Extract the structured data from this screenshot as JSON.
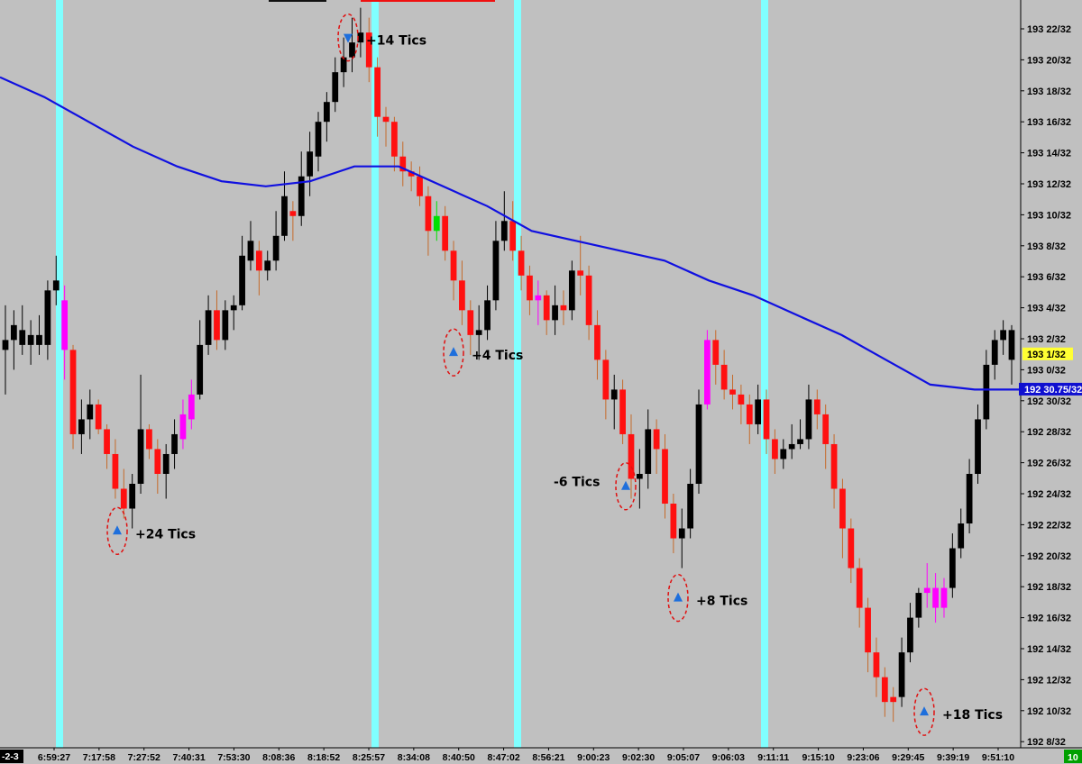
{
  "chart_data": {
    "type": "candlestick",
    "price_axis_labels": [
      "193 22/32",
      "193 20/32",
      "193 18/32",
      "193 16/32",
      "193 14/32",
      "193 12/32",
      "193 10/32",
      "193 8/32",
      "193 6/32",
      "193 4/32",
      "193 2/32",
      "193 0/32",
      "192 30/32",
      "192 28/32",
      "192 26/32",
      "192 24/32",
      "192 22/32",
      "192 20/32",
      "192 18/32",
      "192 16/32",
      "192 14/32",
      "192 12/32",
      "192 10/32",
      "192 8/32"
    ],
    "price_axis_values": [
      193.6875,
      193.625,
      193.5625,
      193.5,
      193.4375,
      193.375,
      193.3125,
      193.25,
      193.1875,
      193.125,
      193.0625,
      193.0,
      192.9375,
      192.875,
      192.8125,
      192.75,
      192.6875,
      192.625,
      192.5625,
      192.5,
      192.4375,
      192.375,
      192.3125,
      192.25
    ],
    "ylim": [
      192.2348,
      193.7391
    ],
    "last_price_label": "193 1/32",
    "moving_average_label": "192 30.75/32",
    "moving_average_value": 192.9609,
    "time_axis_labels": [
      "6:59:27",
      "7:17:58",
      "7:27:52",
      "7:40:31",
      "7:53:30",
      "8:08:36",
      "8:18:52",
      "8:25:57",
      "8:34:08",
      "8:40:50",
      "8:47:02",
      "8:56:21",
      "9:00:23",
      "9:02:30",
      "9:05:07",
      "9:06:03",
      "9:11:11",
      "9:15:10",
      "9:23:06",
      "9:29:45",
      "9:39:19",
      "9:51:10"
    ],
    "time_axis_left_fragment": "-2-3",
    "time_axis_right_fragment": "10",
    "volume_bar_count": 120,
    "candles": [
      [
        193.04,
        193.13,
        192.95,
        193.06,
        "black"
      ],
      [
        193.06,
        193.12,
        193.0,
        193.09,
        "black"
      ],
      [
        193.08,
        193.13,
        193.03,
        193.05,
        "black"
      ],
      [
        193.05,
        193.1,
        193.01,
        193.07,
        "black"
      ],
      [
        193.07,
        193.11,
        193.03,
        193.05,
        "black"
      ],
      [
        193.05,
        193.18,
        193.02,
        193.16,
        "black"
      ],
      [
        193.16,
        193.23,
        193.13,
        193.18,
        "black"
      ],
      [
        193.14,
        193.17,
        192.98,
        193.04,
        "magenta"
      ],
      [
        193.04,
        193.05,
        192.84,
        192.87,
        "red"
      ],
      [
        192.87,
        192.94,
        192.83,
        192.9,
        "black"
      ],
      [
        192.9,
        192.96,
        192.86,
        192.93,
        "black"
      ],
      [
        192.93,
        192.94,
        192.87,
        192.88,
        "red"
      ],
      [
        192.88,
        192.89,
        192.8,
        192.83,
        "red"
      ],
      [
        192.83,
        192.86,
        192.74,
        192.76,
        "red"
      ],
      [
        192.76,
        192.8,
        192.7,
        192.72,
        "red"
      ],
      [
        192.72,
        192.79,
        192.68,
        192.77,
        "black"
      ],
      [
        192.77,
        192.99,
        192.75,
        192.88,
        "black"
      ],
      [
        192.88,
        192.89,
        192.82,
        192.84,
        "red"
      ],
      [
        192.84,
        192.86,
        192.75,
        192.79,
        "red"
      ],
      [
        192.79,
        192.85,
        192.74,
        192.83,
        "black"
      ],
      [
        192.83,
        192.9,
        192.8,
        192.87,
        "black"
      ],
      [
        192.86,
        192.94,
        192.84,
        192.91,
        "magenta"
      ],
      [
        192.9,
        192.98,
        192.88,
        192.95,
        "magenta"
      ],
      [
        192.95,
        193.1,
        192.94,
        193.05,
        "black"
      ],
      [
        193.05,
        193.15,
        193.03,
        193.12,
        "black"
      ],
      [
        193.12,
        193.16,
        193.04,
        193.06,
        "red"
      ],
      [
        193.06,
        193.14,
        193.04,
        193.12,
        "black"
      ],
      [
        193.12,
        193.15,
        193.08,
        193.13,
        "black"
      ],
      [
        193.13,
        193.27,
        193.12,
        193.23,
        "black"
      ],
      [
        193.22,
        193.3,
        193.2,
        193.26,
        "black"
      ],
      [
        193.24,
        193.26,
        193.15,
        193.2,
        "red"
      ],
      [
        193.2,
        193.24,
        193.18,
        193.22,
        "black"
      ],
      [
        193.22,
        193.32,
        193.2,
        193.27,
        "black"
      ],
      [
        193.27,
        193.4,
        193.26,
        193.35,
        "black"
      ],
      [
        193.32,
        193.34,
        193.26,
        193.31,
        "red"
      ],
      [
        193.31,
        193.44,
        193.29,
        193.39,
        "black"
      ],
      [
        193.39,
        193.48,
        193.35,
        193.44,
        "black"
      ],
      [
        193.43,
        193.52,
        193.4,
        193.5,
        "black"
      ],
      [
        193.5,
        193.56,
        193.46,
        193.54,
        "black"
      ],
      [
        193.54,
        193.63,
        193.52,
        193.6,
        "black"
      ],
      [
        193.6,
        193.67,
        193.57,
        193.63,
        "black"
      ],
      [
        193.63,
        193.71,
        193.6,
        193.66,
        "black"
      ],
      [
        193.66,
        193.73,
        193.63,
        193.68,
        "black"
      ],
      [
        193.68,
        193.71,
        193.58,
        193.61,
        "red"
      ],
      [
        193.61,
        193.63,
        193.47,
        193.51,
        "red"
      ],
      [
        193.51,
        193.53,
        193.45,
        193.5,
        "red"
      ],
      [
        193.5,
        193.51,
        193.4,
        193.43,
        "red"
      ],
      [
        193.43,
        193.46,
        193.37,
        193.4,
        "red"
      ],
      [
        193.4,
        193.42,
        193.36,
        193.39,
        "red"
      ],
      [
        193.39,
        193.41,
        193.33,
        193.35,
        "red"
      ],
      [
        193.35,
        193.37,
        193.23,
        193.28,
        "red"
      ],
      [
        193.28,
        193.34,
        193.26,
        193.31,
        "green"
      ],
      [
        193.31,
        193.33,
        193.22,
        193.24,
        "red"
      ],
      [
        193.24,
        193.26,
        193.14,
        193.18,
        "red"
      ],
      [
        193.18,
        193.22,
        193.09,
        193.12,
        "red"
      ],
      [
        193.12,
        193.14,
        193.03,
        193.07,
        "red"
      ],
      [
        193.07,
        193.13,
        193.02,
        193.08,
        "black"
      ],
      [
        193.08,
        193.17,
        193.06,
        193.14,
        "black"
      ],
      [
        193.14,
        193.3,
        193.12,
        193.26,
        "black"
      ],
      [
        193.26,
        193.36,
        193.24,
        193.3,
        "black"
      ],
      [
        193.3,
        193.34,
        193.22,
        193.24,
        "red"
      ],
      [
        193.24,
        193.27,
        193.16,
        193.19,
        "red"
      ],
      [
        193.19,
        193.21,
        193.11,
        193.14,
        "red"
      ],
      [
        193.14,
        193.18,
        193.09,
        193.15,
        "magenta"
      ],
      [
        193.15,
        193.16,
        193.07,
        193.1,
        "red"
      ],
      [
        193.1,
        193.17,
        193.07,
        193.13,
        "black"
      ],
      [
        193.13,
        193.16,
        193.09,
        193.12,
        "red"
      ],
      [
        193.12,
        193.22,
        193.1,
        193.2,
        "black"
      ],
      [
        193.2,
        193.27,
        193.15,
        193.19,
        "red"
      ],
      [
        193.19,
        193.21,
        193.06,
        193.09,
        "red"
      ],
      [
        193.09,
        193.12,
        192.98,
        193.02,
        "red"
      ],
      [
        193.02,
        193.04,
        192.9,
        192.94,
        "red"
      ],
      [
        192.94,
        192.99,
        192.88,
        192.96,
        "black"
      ],
      [
        192.96,
        192.98,
        192.85,
        192.87,
        "red"
      ],
      [
        192.87,
        192.91,
        192.74,
        192.78,
        "red"
      ],
      [
        192.78,
        192.84,
        192.72,
        192.79,
        "black"
      ],
      [
        192.79,
        192.92,
        192.76,
        192.88,
        "black"
      ],
      [
        192.88,
        192.9,
        192.79,
        192.84,
        "red"
      ],
      [
        192.84,
        192.87,
        192.7,
        192.73,
        "red"
      ],
      [
        192.73,
        192.75,
        192.63,
        192.66,
        "red"
      ],
      [
        192.66,
        192.72,
        192.6,
        192.68,
        "black"
      ],
      [
        192.68,
        192.8,
        192.66,
        192.77,
        "black"
      ],
      [
        192.77,
        192.96,
        192.75,
        192.93,
        "black"
      ],
      [
        192.93,
        193.08,
        192.92,
        193.06,
        "magenta"
      ],
      [
        193.06,
        193.08,
        192.97,
        193.01,
        "red"
      ],
      [
        193.01,
        193.04,
        192.94,
        192.96,
        "red"
      ],
      [
        192.96,
        192.99,
        192.92,
        192.95,
        "red"
      ],
      [
        192.95,
        192.97,
        192.89,
        192.93,
        "red"
      ],
      [
        192.93,
        192.95,
        192.85,
        192.89,
        "red"
      ],
      [
        192.89,
        192.97,
        192.87,
        192.94,
        "black"
      ],
      [
        192.94,
        192.96,
        192.83,
        192.86,
        "red"
      ],
      [
        192.86,
        192.88,
        192.79,
        192.82,
        "red"
      ],
      [
        192.82,
        192.86,
        192.8,
        192.84,
        "black"
      ],
      [
        192.84,
        192.89,
        192.82,
        192.85,
        "black"
      ],
      [
        192.85,
        192.9,
        192.84,
        192.86,
        "black"
      ],
      [
        192.86,
        192.97,
        192.84,
        192.94,
        "black"
      ],
      [
        192.94,
        192.96,
        192.88,
        192.91,
        "red"
      ],
      [
        192.91,
        192.93,
        192.8,
        192.85,
        "red"
      ],
      [
        192.85,
        192.87,
        192.72,
        192.76,
        "red"
      ],
      [
        192.76,
        192.78,
        192.62,
        192.68,
        "red"
      ],
      [
        192.68,
        192.7,
        192.57,
        192.6,
        "red"
      ],
      [
        192.6,
        192.62,
        192.48,
        192.52,
        "red"
      ],
      [
        192.52,
        192.54,
        192.39,
        192.43,
        "red"
      ],
      [
        192.43,
        192.46,
        192.34,
        192.38,
        "red"
      ],
      [
        192.38,
        192.4,
        192.3,
        192.33,
        "red"
      ],
      [
        192.33,
        192.36,
        192.29,
        192.34,
        "red"
      ],
      [
        192.34,
        192.46,
        192.32,
        192.43,
        "black"
      ],
      [
        192.43,
        192.53,
        192.41,
        192.5,
        "black"
      ],
      [
        192.5,
        192.56,
        192.48,
        192.55,
        "black"
      ],
      [
        192.55,
        192.61,
        192.52,
        192.56,
        "magenta"
      ],
      [
        192.56,
        192.59,
        192.49,
        192.52,
        "magenta"
      ],
      [
        192.52,
        192.58,
        192.5,
        192.56,
        "magenta"
      ],
      [
        192.56,
        192.67,
        192.54,
        192.64,
        "black"
      ],
      [
        192.64,
        192.72,
        192.62,
        192.69,
        "black"
      ],
      [
        192.69,
        192.82,
        192.67,
        192.79,
        "black"
      ],
      [
        192.79,
        192.93,
        192.77,
        192.9,
        "black"
      ],
      [
        192.9,
        193.04,
        192.88,
        193.01,
        "black"
      ],
      [
        193.01,
        193.08,
        192.98,
        193.06,
        "black"
      ],
      [
        193.06,
        193.1,
        193.03,
        193.08,
        "black"
      ],
      [
        193.08,
        193.09,
        192.97,
        193.02,
        "black"
      ]
    ],
    "moving_average": [
      193.59,
      193.55,
      193.5,
      193.45,
      193.41,
      193.38,
      193.37,
      193.38,
      193.41,
      193.41,
      193.37,
      193.33,
      193.28,
      193.26,
      193.24,
      193.22,
      193.18,
      193.15,
      193.11,
      193.07,
      193.02,
      192.97,
      192.96,
      192.96
    ],
    "session_bands": [
      66,
      416,
      574,
      848
    ],
    "annotations": [
      {
        "label": "+24 Tics",
        "x": 130,
        "price": 192.675,
        "dir": "up"
      },
      {
        "label": "+14 Tics",
        "x": 386,
        "price": 193.67,
        "dir": "down"
      },
      {
        "label": "+4 Tics",
        "x": 503,
        "price": 193.035,
        "dir": "up"
      },
      {
        "label": "-6 Tics",
        "x": 694,
        "price": 192.765,
        "dir": "up"
      },
      {
        "label": "+8 Tics",
        "x": 752,
        "price": 192.54,
        "dir": "up"
      },
      {
        "label": "+18 Tics",
        "x": 1025,
        "price": 192.31,
        "dir": "up"
      }
    ]
  }
}
